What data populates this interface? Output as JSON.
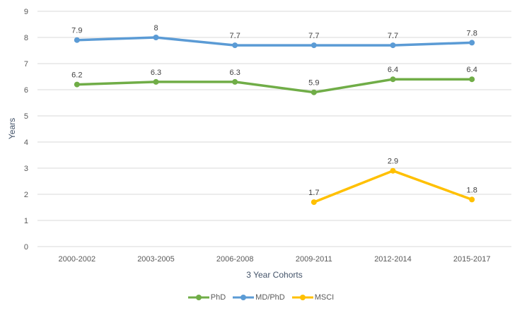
{
  "chart_data": {
    "type": "line",
    "title": "",
    "categories": [
      "2000-2002",
      "2003-2005",
      "2006-2008",
      "2009-2011",
      "2012-2014",
      "2015-2017"
    ],
    "series": [
      {
        "name": "PhD",
        "color": "#70AD47",
        "values": [
          6.2,
          6.3,
          6.3,
          5.9,
          6.4,
          6.4
        ],
        "labels": [
          "6.2",
          "6.3",
          "6.3",
          "5.9",
          "6.4",
          "6.4"
        ]
      },
      {
        "name": "MD/PhD",
        "color": "#5B9BD5",
        "values": [
          7.9,
          8,
          7.7,
          7.7,
          7.7,
          7.8
        ],
        "labels": [
          "7.9",
          "8",
          "7.7",
          "7.7",
          "7.7",
          "7.8"
        ]
      },
      {
        "name": "MSCI",
        "color": "#FFC000",
        "values": [
          null,
          null,
          null,
          1.7,
          2.9,
          1.8
        ],
        "labels": [
          null,
          null,
          null,
          "1.7",
          "2.9",
          "1.8"
        ]
      }
    ],
    "xlabel": "3 Year Cohorts",
    "ylabel": "Years",
    "ylim": [
      0,
      9
    ],
    "yticks": [
      "0",
      "1",
      "2",
      "3",
      "4",
      "5",
      "6",
      "7",
      "8",
      "9"
    ],
    "grid": true,
    "legend_position": "bottom"
  },
  "colors": {
    "background": "#FFFFFF",
    "gridline": "#D9D9D9",
    "tick_label": "#595959",
    "axis_title": "#44546A",
    "data_label": "#404040",
    "legend_label": "#595959"
  }
}
